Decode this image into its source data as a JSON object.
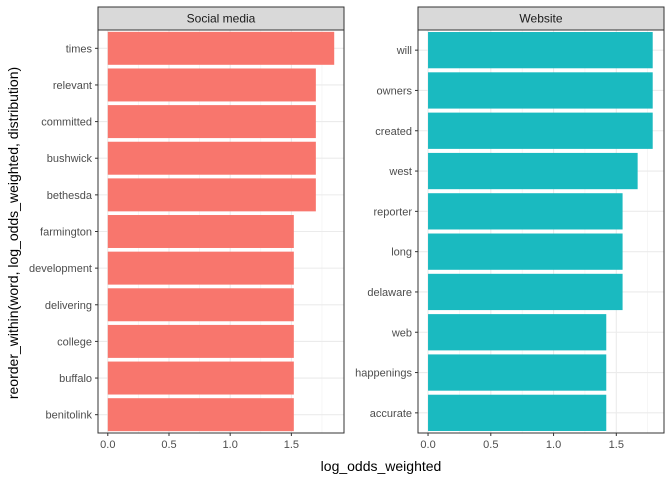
{
  "chart_data": {
    "type": "bar",
    "orientation": "horizontal",
    "xlabel": "log_odds_weighted",
    "ylabel": "reorder_within(word, log_odds_weighted, distribution)",
    "grid": true,
    "legend": "none",
    "panels": [
      {
        "name": "Social media",
        "color": "#F8766D",
        "xlim": [
          -0.08,
          1.93
        ],
        "x_ticks": [
          0.0,
          0.5,
          1.0,
          1.5
        ],
        "x_tick_labels": [
          "0.0",
          "0.5",
          "1.0",
          "1.5"
        ],
        "categories": [
          "times",
          "relevant",
          "committed",
          "bushwick",
          "bethesda",
          "farmington",
          "development",
          "delivering",
          "college",
          "buffalo",
          "benitolink"
        ],
        "values": [
          1.85,
          1.7,
          1.7,
          1.7,
          1.7,
          1.52,
          1.52,
          1.52,
          1.52,
          1.52,
          1.52
        ]
      },
      {
        "name": "Website",
        "color": "#1ABAC0",
        "xlim": [
          -0.08,
          1.88
        ],
        "x_ticks": [
          0.0,
          0.5,
          1.0,
          1.5
        ],
        "x_tick_labels": [
          "0.0",
          "0.5",
          "1.0",
          "1.5"
        ],
        "categories": [
          "will",
          "owners",
          "created",
          "west",
          "reporter",
          "long",
          "delaware",
          "web",
          "happenings",
          "accurate"
        ],
        "values": [
          1.79,
          1.79,
          1.79,
          1.67,
          1.55,
          1.55,
          1.55,
          1.42,
          1.42,
          1.42
        ]
      }
    ]
  }
}
